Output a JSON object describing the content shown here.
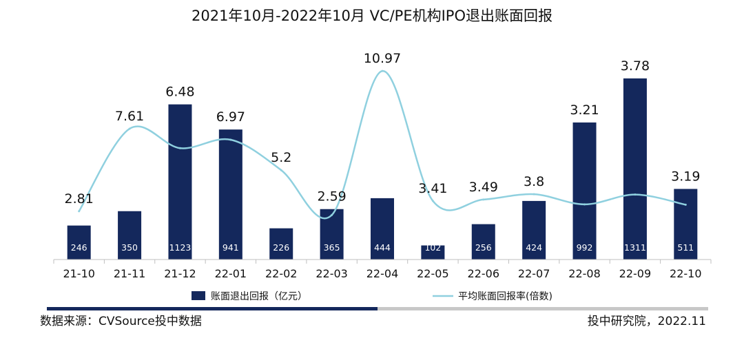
{
  "chart_data": {
    "type": "bar+line",
    "title": "2021年10月-2022年10月 VC/PE机构IPO退出账面回报",
    "categories": [
      "21-10",
      "21-11",
      "21-12",
      "22-01",
      "22-02",
      "22-03",
      "22-04",
      "22-05",
      "22-06",
      "22-07",
      "22-08",
      "22-09",
      "22-10"
    ],
    "series": [
      {
        "name": "账面退出回报（亿元）",
        "type": "bar",
        "color": "#14285c",
        "values": [
          246,
          350,
          1123,
          941,
          226,
          365,
          444,
          102,
          256,
          424,
          992,
          1311,
          511
        ]
      },
      {
        "name": "平均账面回报率(倍数)",
        "type": "line",
        "color": "#8fd0df",
        "values": [
          2.81,
          7.61,
          6.48,
          6.97,
          5.2,
          2.59,
          10.97,
          3.41,
          3.49,
          3.8,
          3.21,
          3.78,
          3.19
        ]
      }
    ],
    "value_labels": [
      "2.81",
      "7.61",
      "6.48",
      "6.97",
      "5.2",
      "2.59",
      "10.97",
      "3.41",
      "3.49",
      "3.8",
      "3.21",
      "3.78",
      "3.19"
    ],
    "ylim_bar": [
      0,
      1450
    ],
    "ylim_line": [
      0,
      13.5
    ],
    "legend_position": "bottom-center"
  },
  "footer": {
    "source": "数据来源：CVSource投中数据",
    "org": "投中研究院，2022.11"
  }
}
